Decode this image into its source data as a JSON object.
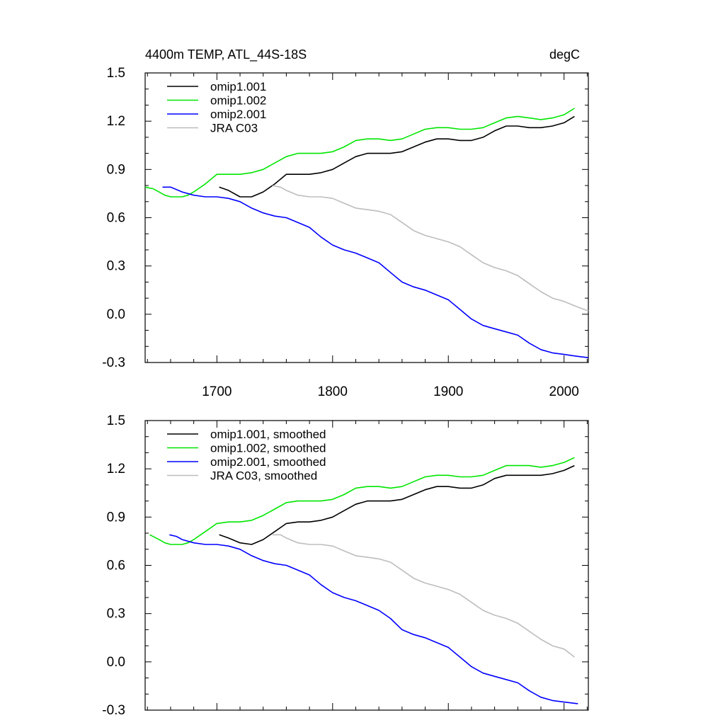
{
  "chart_data": [
    {
      "type": "line",
      "title": "4400m TEMP, ATL_44S-18S",
      "units": "degC",
      "xlabel": "",
      "ylabel": "",
      "xlim": [
        1638,
        2021
      ],
      "ylim": [
        -0.3,
        1.5
      ],
      "xticks": [
        1700,
        1800,
        1900,
        2000
      ],
      "yticks": [
        -0.3,
        0.0,
        0.3,
        0.6,
        0.9,
        1.2,
        1.5
      ],
      "ytick_labels": [
        "-0.3",
        "0.0",
        "0.3",
        "0.6",
        "0.9",
        "1.2",
        "1.5"
      ],
      "show_xtick_labels": true,
      "grid": false,
      "legend_position": "top-left",
      "series": [
        {
          "name": "omip1.001",
          "color": "#000000",
          "x": [
            1702,
            1710,
            1720,
            1730,
            1740,
            1750,
            1760,
            1770,
            1780,
            1790,
            1800,
            1810,
            1820,
            1830,
            1840,
            1850,
            1860,
            1870,
            1880,
            1890,
            1900,
            1910,
            1920,
            1930,
            1940,
            1950,
            1960,
            1970,
            1980,
            1990,
            2000,
            2009
          ],
          "y": [
            0.79,
            0.77,
            0.73,
            0.73,
            0.76,
            0.81,
            0.87,
            0.87,
            0.87,
            0.88,
            0.9,
            0.94,
            0.98,
            1.0,
            1.0,
            1.0,
            1.01,
            1.04,
            1.07,
            1.09,
            1.09,
            1.08,
            1.08,
            1.1,
            1.14,
            1.17,
            1.17,
            1.16,
            1.16,
            1.17,
            1.19,
            1.23
          ]
        },
        {
          "name": "omip1.002",
          "color": "#00e600",
          "x": [
            1638,
            1645,
            1650,
            1655,
            1660,
            1665,
            1670,
            1675,
            1680,
            1690,
            1700,
            1710,
            1720,
            1730,
            1740,
            1750,
            1760,
            1770,
            1780,
            1790,
            1800,
            1810,
            1820,
            1830,
            1840,
            1850,
            1860,
            1870,
            1880,
            1890,
            1900,
            1910,
            1920,
            1930,
            1940,
            1950,
            1960,
            1970,
            1980,
            1990,
            2000,
            2009
          ],
          "y": [
            0.79,
            0.78,
            0.76,
            0.74,
            0.73,
            0.73,
            0.73,
            0.74,
            0.76,
            0.81,
            0.87,
            0.87,
            0.87,
            0.88,
            0.9,
            0.94,
            0.98,
            1.0,
            1.0,
            1.0,
            1.01,
            1.04,
            1.08,
            1.09,
            1.09,
            1.08,
            1.09,
            1.12,
            1.15,
            1.16,
            1.16,
            1.15,
            1.15,
            1.16,
            1.19,
            1.22,
            1.23,
            1.22,
            1.21,
            1.22,
            1.24,
            1.28
          ]
        },
        {
          "name": "omip2.001",
          "color": "#0000ff",
          "x": [
            1653,
            1660,
            1670,
            1680,
            1690,
            1700,
            1710,
            1720,
            1730,
            1740,
            1750,
            1760,
            1770,
            1780,
            1790,
            1800,
            1810,
            1820,
            1830,
            1840,
            1850,
            1860,
            1870,
            1880,
            1890,
            1900,
            1910,
            1920,
            1930,
            1940,
            1950,
            1960,
            1970,
            1980,
            1990,
            2000,
            2010,
            2021
          ],
          "y": [
            0.79,
            0.79,
            0.76,
            0.74,
            0.73,
            0.73,
            0.72,
            0.7,
            0.66,
            0.63,
            0.61,
            0.6,
            0.57,
            0.54,
            0.48,
            0.43,
            0.4,
            0.38,
            0.35,
            0.32,
            0.26,
            0.2,
            0.17,
            0.15,
            0.12,
            0.09,
            0.03,
            -0.03,
            -0.07,
            -0.09,
            -0.11,
            -0.13,
            -0.18,
            -0.22,
            -0.24,
            -0.25,
            -0.26,
            -0.27
          ]
        },
        {
          "name": "JRA C03",
          "color": "#bdbdbd",
          "x": [
            1748,
            1755,
            1760,
            1770,
            1780,
            1790,
            1800,
            1810,
            1820,
            1830,
            1840,
            1850,
            1860,
            1870,
            1880,
            1890,
            1900,
            1910,
            1920,
            1930,
            1940,
            1950,
            1960,
            1970,
            1980,
            1990,
            2000,
            2010,
            2021
          ],
          "y": [
            0.8,
            0.79,
            0.77,
            0.74,
            0.73,
            0.73,
            0.72,
            0.69,
            0.66,
            0.65,
            0.64,
            0.62,
            0.57,
            0.52,
            0.49,
            0.47,
            0.45,
            0.42,
            0.37,
            0.32,
            0.29,
            0.27,
            0.24,
            0.19,
            0.14,
            0.1,
            0.08,
            0.05,
            0.02
          ]
        }
      ]
    },
    {
      "type": "line",
      "title": "",
      "units": "",
      "xlabel": "",
      "ylabel": "",
      "xlim": [
        1638,
        2021
      ],
      "ylim": [
        -0.3,
        1.5
      ],
      "xticks": [
        1700,
        1800,
        1900,
        2000
      ],
      "yticks": [
        -0.3,
        0.0,
        0.3,
        0.6,
        0.9,
        1.2,
        1.5
      ],
      "ytick_labels": [
        "-0.3",
        "0.0",
        "0.3",
        "0.6",
        "0.9",
        "1.2",
        "1.5"
      ],
      "show_xtick_labels": false,
      "grid": false,
      "legend_position": "top-left",
      "series": [
        {
          "name": "omip1.001, smoothed",
          "color": "#000000",
          "x": [
            1702,
            1710,
            1720,
            1730,
            1740,
            1750,
            1760,
            1770,
            1780,
            1790,
            1800,
            1810,
            1820,
            1830,
            1840,
            1850,
            1860,
            1870,
            1880,
            1890,
            1900,
            1910,
            1920,
            1930,
            1940,
            1950,
            1960,
            1970,
            1980,
            1990,
            2000,
            2009
          ],
          "y": [
            0.79,
            0.77,
            0.74,
            0.73,
            0.76,
            0.81,
            0.86,
            0.87,
            0.87,
            0.88,
            0.9,
            0.94,
            0.98,
            1.0,
            1.0,
            1.0,
            1.01,
            1.04,
            1.07,
            1.09,
            1.09,
            1.08,
            1.08,
            1.1,
            1.14,
            1.16,
            1.16,
            1.16,
            1.16,
            1.17,
            1.19,
            1.22
          ]
        },
        {
          "name": "omip1.002, smoothed",
          "color": "#00e600",
          "x": [
            1642,
            1650,
            1655,
            1660,
            1665,
            1670,
            1675,
            1680,
            1690,
            1700,
            1710,
            1720,
            1730,
            1740,
            1750,
            1760,
            1770,
            1780,
            1790,
            1800,
            1810,
            1820,
            1830,
            1840,
            1850,
            1860,
            1870,
            1880,
            1890,
            1900,
            1910,
            1920,
            1930,
            1940,
            1950,
            1960,
            1970,
            1980,
            1990,
            2000,
            2009
          ],
          "y": [
            0.79,
            0.76,
            0.74,
            0.73,
            0.73,
            0.73,
            0.74,
            0.76,
            0.81,
            0.86,
            0.87,
            0.87,
            0.88,
            0.91,
            0.95,
            0.99,
            1.0,
            1.0,
            1.0,
            1.01,
            1.04,
            1.08,
            1.09,
            1.09,
            1.08,
            1.09,
            1.12,
            1.15,
            1.16,
            1.16,
            1.15,
            1.15,
            1.16,
            1.19,
            1.22,
            1.22,
            1.22,
            1.21,
            1.22,
            1.24,
            1.27
          ]
        },
        {
          "name": "omip2.001, smoothed",
          "color": "#0000ff",
          "x": [
            1659,
            1665,
            1670,
            1680,
            1690,
            1700,
            1710,
            1720,
            1730,
            1740,
            1750,
            1760,
            1770,
            1780,
            1790,
            1800,
            1810,
            1820,
            1830,
            1840,
            1850,
            1860,
            1870,
            1880,
            1890,
            1900,
            1910,
            1920,
            1930,
            1940,
            1950,
            1960,
            1970,
            1980,
            1990,
            2000,
            2012
          ],
          "y": [
            0.79,
            0.78,
            0.76,
            0.74,
            0.73,
            0.73,
            0.72,
            0.7,
            0.66,
            0.63,
            0.61,
            0.6,
            0.57,
            0.54,
            0.48,
            0.43,
            0.4,
            0.38,
            0.35,
            0.32,
            0.27,
            0.2,
            0.17,
            0.15,
            0.12,
            0.09,
            0.03,
            -0.03,
            -0.07,
            -0.09,
            -0.11,
            -0.13,
            -0.18,
            -0.22,
            -0.24,
            -0.25,
            -0.26
          ]
        },
        {
          "name": "JRA C03, smoothed",
          "color": "#bdbdbd",
          "x": [
            1748,
            1755,
            1760,
            1770,
            1780,
            1790,
            1800,
            1810,
            1820,
            1830,
            1840,
            1850,
            1860,
            1870,
            1880,
            1890,
            1900,
            1910,
            1920,
            1930,
            1940,
            1950,
            1960,
            1970,
            1980,
            1990,
            2000,
            2009
          ],
          "y": [
            0.79,
            0.79,
            0.77,
            0.74,
            0.73,
            0.73,
            0.72,
            0.69,
            0.66,
            0.65,
            0.64,
            0.62,
            0.57,
            0.52,
            0.49,
            0.47,
            0.45,
            0.42,
            0.37,
            0.32,
            0.29,
            0.27,
            0.24,
            0.19,
            0.14,
            0.1,
            0.08,
            0.03
          ]
        }
      ]
    }
  ]
}
